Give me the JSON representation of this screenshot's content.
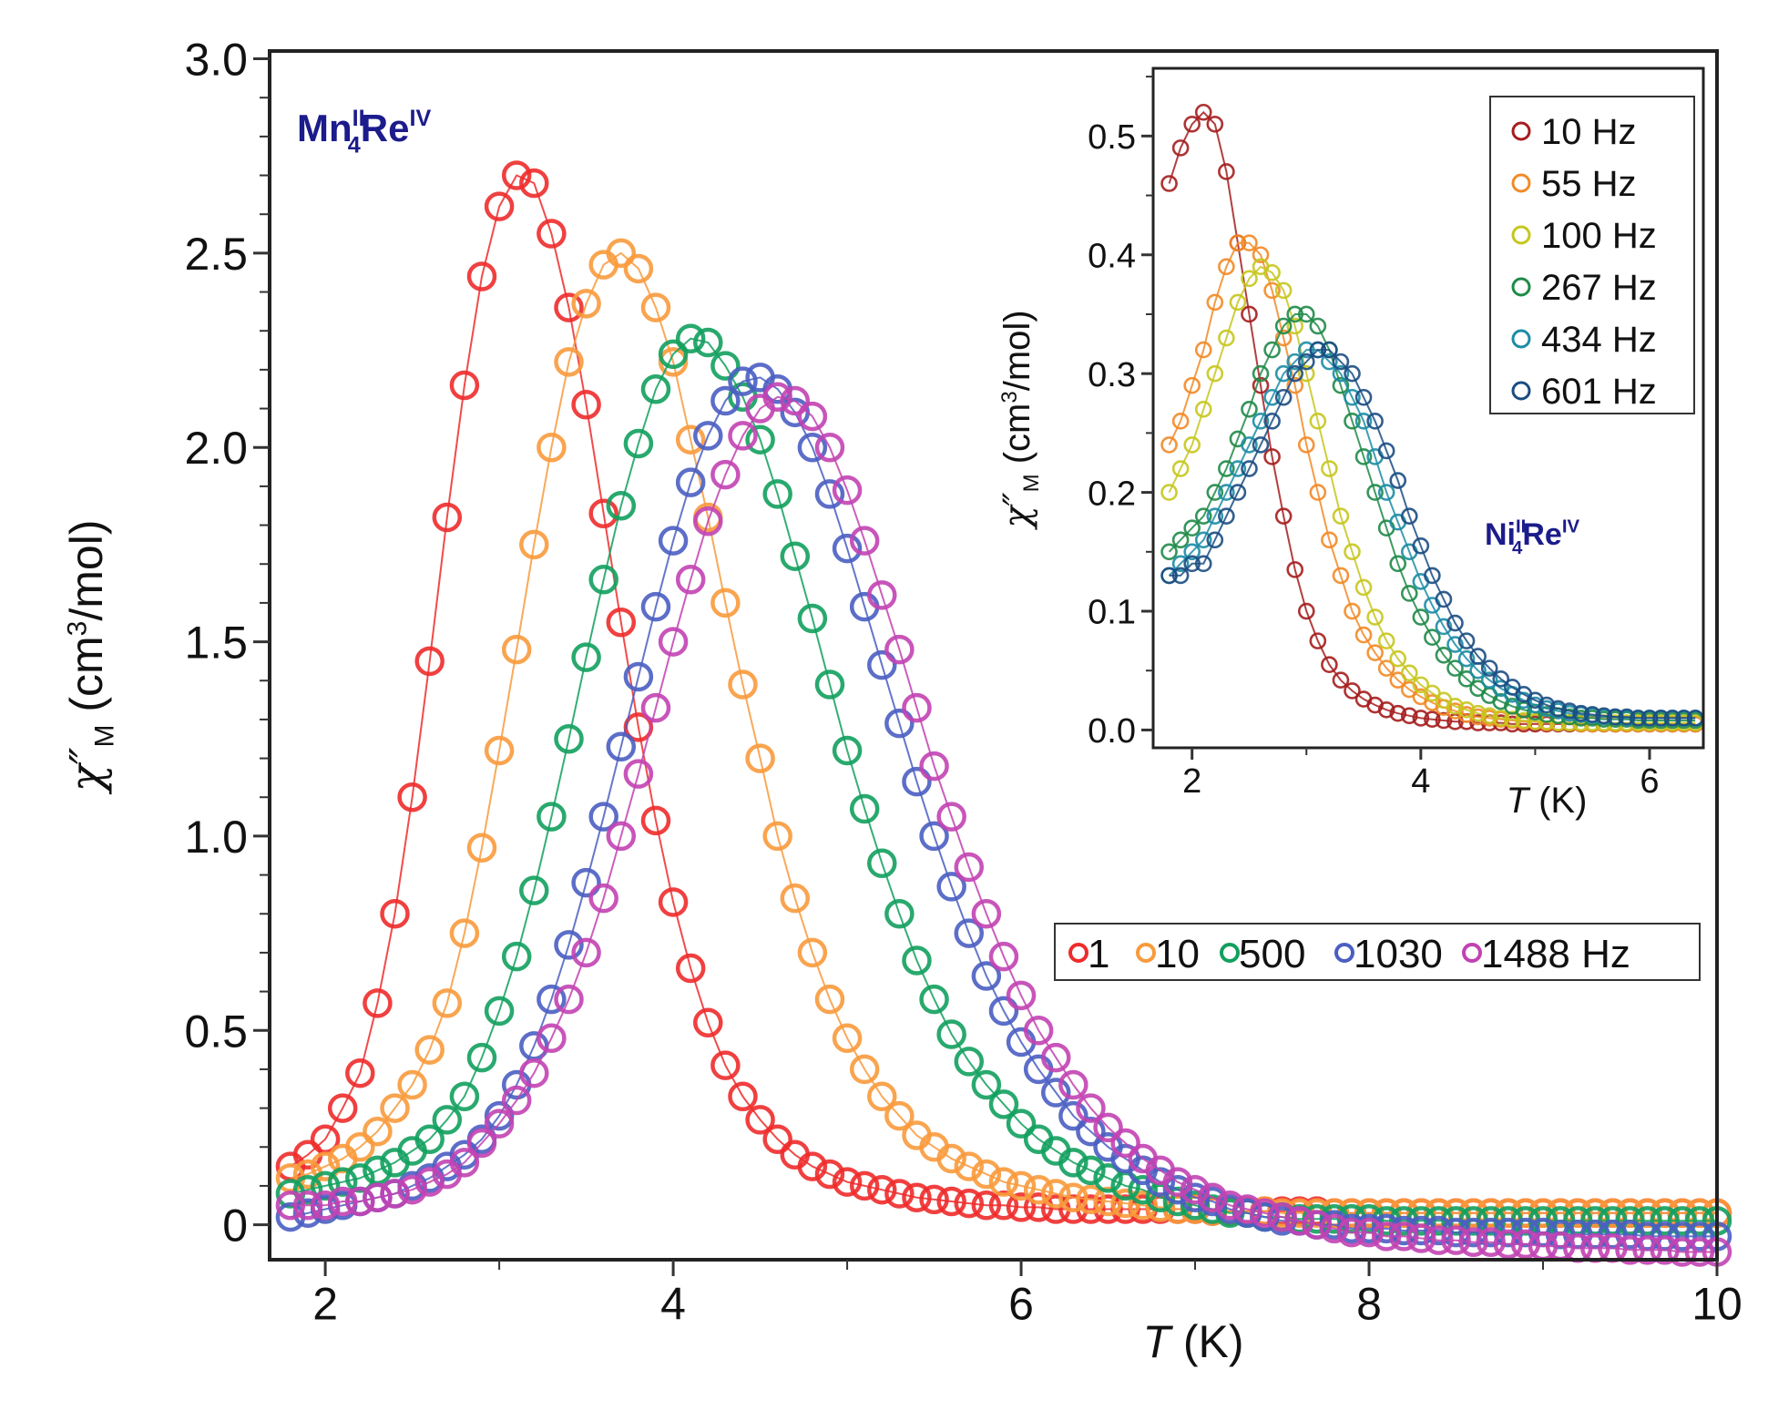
{
  "chart_data": [
    {
      "type": "line",
      "title": "",
      "annotation": {
        "base1": "Mn",
        "sup1": "II",
        "sub1": "4",
        "base2": "Re",
        "sup2": "IV"
      },
      "xlabel": {
        "italic": "T",
        "rest": " (K)"
      },
      "ylabel": {
        "chi": "χ″",
        "sub": "M",
        "pre": " (cm",
        "sup": "3",
        "post": "/mol)"
      },
      "xlim": [
        1.68,
        10.0
      ],
      "ylim": [
        -0.09,
        3.02
      ],
      "xticks": [
        2,
        4,
        6,
        8,
        10
      ],
      "xtick_labels": [
        "2",
        "4",
        "6",
        "8",
        "10"
      ],
      "yticks": [
        0,
        0.5,
        1.0,
        1.5,
        2.0,
        2.5,
        3.0
      ],
      "ytick_labels": [
        "0",
        "0.5",
        "1.0",
        "1.5",
        "2.0",
        "2.5",
        "3.0"
      ],
      "legend": {
        "placement": "center-right",
        "labels": [
          "1",
          "10",
          "500",
          "1030",
          "1488 Hz"
        ]
      },
      "grid": false,
      "x": [
        1.8,
        1.9,
        2.0,
        2.1,
        2.2,
        2.3,
        2.4,
        2.5,
        2.6,
        2.7,
        2.8,
        2.9,
        3.0,
        3.1,
        3.2,
        3.3,
        3.4,
        3.5,
        3.6,
        3.7,
        3.8,
        3.9,
        4.0,
        4.1,
        4.2,
        4.3,
        4.4,
        4.5,
        4.6,
        4.7,
        4.8,
        4.9,
        5.0,
        5.1,
        5.2,
        5.3,
        5.4,
        5.5,
        5.6,
        5.7,
        5.8,
        5.9,
        6.0,
        6.1,
        6.2,
        6.3,
        6.4,
        6.5,
        6.6,
        6.7,
        6.8,
        6.9,
        7.0,
        7.1,
        7.2,
        7.3,
        7.4,
        7.5,
        7.6,
        7.7,
        7.8,
        7.9,
        8.0,
        8.1,
        8.2,
        8.3,
        8.4,
        8.5,
        8.6,
        8.7,
        8.8,
        8.9,
        9.0,
        9.1,
        9.2,
        9.3,
        9.4,
        9.5,
        9.6,
        9.7,
        9.8,
        9.9,
        10.0
      ],
      "series": [
        {
          "name": "1 Hz",
          "color": "#ee2b2b",
          "values": [
            0.15,
            0.18,
            0.22,
            0.3,
            0.39,
            0.57,
            0.8,
            1.1,
            1.45,
            1.82,
            2.16,
            2.44,
            2.62,
            2.7,
            2.68,
            2.55,
            2.36,
            2.11,
            1.83,
            1.55,
            1.28,
            1.04,
            0.83,
            0.66,
            0.52,
            0.41,
            0.33,
            0.27,
            0.22,
            0.18,
            0.15,
            0.13,
            0.11,
            0.1,
            0.09,
            0.08,
            0.07,
            0.065,
            0.06,
            0.055,
            0.05,
            0.05,
            0.045,
            0.045,
            0.04,
            0.04,
            0.04,
            0.04,
            0.04,
            0.04,
            0.04,
            0.04,
            0.04,
            0.035,
            0.035,
            0.035,
            0.035,
            0.035,
            0.035,
            0.035,
            0.03,
            0.03,
            0.03,
            0.03,
            0.03,
            0.03,
            0.03,
            0.03,
            0.03,
            0.03,
            0.03,
            0.03,
            0.03,
            0.03,
            0.03,
            0.03,
            0.03,
            0.03,
            0.03,
            0.03,
            0.03,
            0.03,
            0.03
          ]
        },
        {
          "name": "10 Hz",
          "color": "#f89a3c",
          "values": [
            0.12,
            0.13,
            0.15,
            0.17,
            0.2,
            0.24,
            0.3,
            0.36,
            0.45,
            0.57,
            0.75,
            0.97,
            1.22,
            1.48,
            1.75,
            2.0,
            2.22,
            2.37,
            2.47,
            2.5,
            2.46,
            2.36,
            2.22,
            2.02,
            1.82,
            1.6,
            1.39,
            1.2,
            1.0,
            0.84,
            0.7,
            0.58,
            0.48,
            0.4,
            0.33,
            0.28,
            0.23,
            0.2,
            0.17,
            0.15,
            0.13,
            0.11,
            0.1,
            0.09,
            0.08,
            0.07,
            0.065,
            0.06,
            0.055,
            0.05,
            0.045,
            0.04,
            0.04,
            0.035,
            0.035,
            0.035,
            0.035,
            0.03,
            0.03,
            0.03,
            0.03,
            0.03,
            0.03,
            0.03,
            0.03,
            0.03,
            0.03,
            0.03,
            0.03,
            0.03,
            0.03,
            0.03,
            0.03,
            0.03,
            0.03,
            0.03,
            0.03,
            0.03,
            0.03,
            0.03,
            0.03,
            0.03,
            0.03
          ]
        },
        {
          "name": "500 Hz",
          "color": "#12a05e",
          "values": [
            0.08,
            0.09,
            0.1,
            0.11,
            0.12,
            0.14,
            0.16,
            0.19,
            0.22,
            0.27,
            0.33,
            0.43,
            0.55,
            0.69,
            0.86,
            1.05,
            1.25,
            1.46,
            1.66,
            1.85,
            2.01,
            2.15,
            2.24,
            2.28,
            2.27,
            2.21,
            2.13,
            2.02,
            1.88,
            1.72,
            1.56,
            1.39,
            1.22,
            1.07,
            0.93,
            0.8,
            0.68,
            0.58,
            0.49,
            0.42,
            0.36,
            0.31,
            0.26,
            0.22,
            0.19,
            0.16,
            0.14,
            0.12,
            0.1,
            0.09,
            0.07,
            0.06,
            0.05,
            0.04,
            0.03,
            0.03,
            0.02,
            0.02,
            0.015,
            0.015,
            0.015,
            0.015,
            0.015,
            0.01,
            0.01,
            0.01,
            0.01,
            0.01,
            0.01,
            0.01,
            0.01,
            0.01,
            0.01,
            0.01,
            0.01,
            0.01,
            0.01,
            0.01,
            0.01,
            0.01,
            0.01,
            0.01,
            0.01
          ]
        },
        {
          "name": "1030 Hz",
          "color": "#4a5ec2",
          "values": [
            0.02,
            0.03,
            0.04,
            0.05,
            0.06,
            0.07,
            0.08,
            0.1,
            0.12,
            0.15,
            0.18,
            0.22,
            0.28,
            0.36,
            0.46,
            0.58,
            0.72,
            0.88,
            1.05,
            1.23,
            1.41,
            1.59,
            1.76,
            1.91,
            2.03,
            2.12,
            2.17,
            2.18,
            2.15,
            2.09,
            2.0,
            1.88,
            1.74,
            1.59,
            1.44,
            1.29,
            1.14,
            1.0,
            0.87,
            0.75,
            0.64,
            0.55,
            0.47,
            0.4,
            0.34,
            0.28,
            0.24,
            0.2,
            0.17,
            0.14,
            0.11,
            0.09,
            0.07,
            0.06,
            0.04,
            0.03,
            0.02,
            0.01,
            0.01,
            0.0,
            0.0,
            -0.01,
            -0.01,
            -0.01,
            -0.015,
            -0.015,
            -0.015,
            -0.02,
            -0.02,
            -0.02,
            -0.02,
            -0.02,
            -0.02,
            -0.025,
            -0.025,
            -0.025,
            -0.025,
            -0.025,
            -0.03,
            -0.03,
            -0.03,
            -0.03,
            -0.03
          ]
        },
        {
          "name": "1488 Hz",
          "color": "#c242b2",
          "values": [
            0.05,
            0.05,
            0.05,
            0.06,
            0.06,
            0.07,
            0.08,
            0.09,
            0.11,
            0.13,
            0.16,
            0.21,
            0.26,
            0.32,
            0.39,
            0.48,
            0.58,
            0.7,
            0.84,
            1.0,
            1.16,
            1.33,
            1.5,
            1.66,
            1.81,
            1.93,
            2.03,
            2.1,
            2.13,
            2.12,
            2.08,
            2.0,
            1.89,
            1.76,
            1.62,
            1.48,
            1.33,
            1.18,
            1.05,
            0.92,
            0.8,
            0.69,
            0.59,
            0.5,
            0.43,
            0.36,
            0.3,
            0.25,
            0.21,
            0.17,
            0.14,
            0.11,
            0.09,
            0.07,
            0.05,
            0.04,
            0.03,
            0.02,
            0.01,
            0.0,
            -0.01,
            -0.02,
            -0.02,
            -0.03,
            -0.03,
            -0.035,
            -0.04,
            -0.04,
            -0.045,
            -0.045,
            -0.05,
            -0.05,
            -0.055,
            -0.055,
            -0.06,
            -0.06,
            -0.06,
            -0.065,
            -0.065,
            -0.065,
            -0.07,
            -0.07,
            -0.07
          ]
        }
      ]
    },
    {
      "type": "line",
      "title": "",
      "annotation": {
        "base1": "Ni",
        "sup1": "II",
        "sub1": "4",
        "base2": "Re",
        "sup2": "IV"
      },
      "xlabel": {
        "italic": "T",
        "rest": " (K)"
      },
      "ylabel": {
        "chi": "χ″",
        "sub": "M",
        "pre": " (cm",
        "sup": "3",
        "post": "/mol)"
      },
      "xlim": [
        1.66,
        6.47
      ],
      "ylim": [
        -0.015,
        0.557
      ],
      "xticks": [
        2,
        4,
        6
      ],
      "xtick_labels": [
        "2",
        "4",
        "6"
      ],
      "yticks": [
        0.0,
        0.1,
        0.2,
        0.3,
        0.4,
        0.5
      ],
      "ytick_labels": [
        "0.0",
        "0.1",
        "0.2",
        "0.3",
        "0.4",
        "0.5"
      ],
      "legend": {
        "placement": "top-right",
        "labels": [
          "10 Hz",
          "55 Hz",
          "100 Hz",
          "267 Hz",
          "434 Hz",
          "601 Hz"
        ]
      },
      "grid": false,
      "x": [
        1.8,
        1.9,
        2.0,
        2.1,
        2.2,
        2.3,
        2.4,
        2.5,
        2.6,
        2.7,
        2.8,
        2.9,
        3.0,
        3.1,
        3.2,
        3.3,
        3.4,
        3.5,
        3.6,
        3.7,
        3.8,
        3.9,
        4.0,
        4.1,
        4.2,
        4.3,
        4.4,
        4.5,
        4.6,
        4.7,
        4.8,
        4.9,
        5.0,
        5.1,
        5.2,
        5.3,
        5.4,
        5.5,
        5.6,
        5.7,
        5.8,
        5.9,
        6.0,
        6.1,
        6.2,
        6.3,
        6.4
      ],
      "series": [
        {
          "name": "10 Hz",
          "color": "#a51d1d",
          "values": [
            0.46,
            0.49,
            0.51,
            0.52,
            0.51,
            0.47,
            0.41,
            0.35,
            0.29,
            0.23,
            0.18,
            0.135,
            0.1,
            0.075,
            0.055,
            0.042,
            0.033,
            0.026,
            0.021,
            0.017,
            0.014,
            0.012,
            0.01,
            0.009,
            0.008,
            0.007,
            0.007,
            0.006,
            0.006,
            0.006,
            0.005,
            0.005,
            0.005,
            0.005,
            0.005,
            0.005,
            0.005,
            0.005,
            0.005,
            0.005,
            0.005,
            0.005,
            0.005,
            0.005,
            0.005,
            0.005,
            0.005
          ]
        },
        {
          "name": "55 Hz",
          "color": "#f28a26",
          "values": [
            0.24,
            0.26,
            0.29,
            0.32,
            0.36,
            0.39,
            0.41,
            0.41,
            0.4,
            0.37,
            0.33,
            0.29,
            0.24,
            0.2,
            0.16,
            0.13,
            0.1,
            0.08,
            0.065,
            0.052,
            0.042,
            0.034,
            0.028,
            0.023,
            0.019,
            0.016,
            0.013,
            0.011,
            0.01,
            0.009,
            0.008,
            0.007,
            0.007,
            0.006,
            0.006,
            0.006,
            0.005,
            0.005,
            0.005,
            0.005,
            0.005,
            0.005,
            0.005,
            0.005,
            0.005,
            0.005,
            0.005
          ]
        },
        {
          "name": "100 Hz",
          "color": "#c6c61e",
          "values": [
            0.2,
            0.22,
            0.24,
            0.27,
            0.3,
            0.33,
            0.36,
            0.38,
            0.39,
            0.385,
            0.37,
            0.34,
            0.3,
            0.26,
            0.22,
            0.18,
            0.15,
            0.12,
            0.095,
            0.075,
            0.06,
            0.048,
            0.038,
            0.031,
            0.025,
            0.02,
            0.017,
            0.014,
            0.012,
            0.01,
            0.009,
            0.008,
            0.007,
            0.007,
            0.006,
            0.006,
            0.006,
            0.006,
            0.006,
            0.006,
            0.006,
            0.006,
            0.006,
            0.006,
            0.006,
            0.006,
            0.006
          ]
        },
        {
          "name": "267 Hz",
          "color": "#1f8a48",
          "values": [
            0.15,
            0.16,
            0.17,
            0.18,
            0.2,
            0.22,
            0.245,
            0.27,
            0.3,
            0.32,
            0.34,
            0.35,
            0.35,
            0.34,
            0.32,
            0.29,
            0.26,
            0.23,
            0.2,
            0.17,
            0.14,
            0.115,
            0.095,
            0.078,
            0.063,
            0.052,
            0.043,
            0.035,
            0.029,
            0.024,
            0.02,
            0.017,
            0.015,
            0.013,
            0.012,
            0.011,
            0.01,
            0.01,
            0.009,
            0.009,
            0.009,
            0.008,
            0.008,
            0.008,
            0.008,
            0.008,
            0.008
          ]
        },
        {
          "name": "434 Hz",
          "color": "#1c8ca4",
          "values": [
            0.13,
            0.14,
            0.15,
            0.16,
            0.18,
            0.2,
            0.22,
            0.24,
            0.26,
            0.28,
            0.3,
            0.31,
            0.32,
            0.32,
            0.31,
            0.3,
            0.28,
            0.26,
            0.23,
            0.2,
            0.175,
            0.15,
            0.125,
            0.105,
            0.087,
            0.072,
            0.06,
            0.05,
            0.042,
            0.035,
            0.03,
            0.025,
            0.021,
            0.018,
            0.016,
            0.014,
            0.013,
            0.012,
            0.011,
            0.011,
            0.01,
            0.01,
            0.01,
            0.01,
            0.01,
            0.01,
            0.01
          ]
        },
        {
          "name": "601 Hz",
          "color": "#1b4c82",
          "values": [
            0.13,
            0.13,
            0.14,
            0.14,
            0.16,
            0.18,
            0.2,
            0.22,
            0.24,
            0.26,
            0.28,
            0.3,
            0.31,
            0.32,
            0.32,
            0.31,
            0.3,
            0.28,
            0.26,
            0.235,
            0.21,
            0.18,
            0.155,
            0.13,
            0.11,
            0.09,
            0.075,
            0.062,
            0.052,
            0.043,
            0.036,
            0.03,
            0.025,
            0.021,
            0.018,
            0.016,
            0.014,
            0.013,
            0.012,
            0.011,
            0.011,
            0.01,
            0.01,
            0.01,
            0.01,
            0.01,
            0.01
          ]
        }
      ]
    }
  ]
}
